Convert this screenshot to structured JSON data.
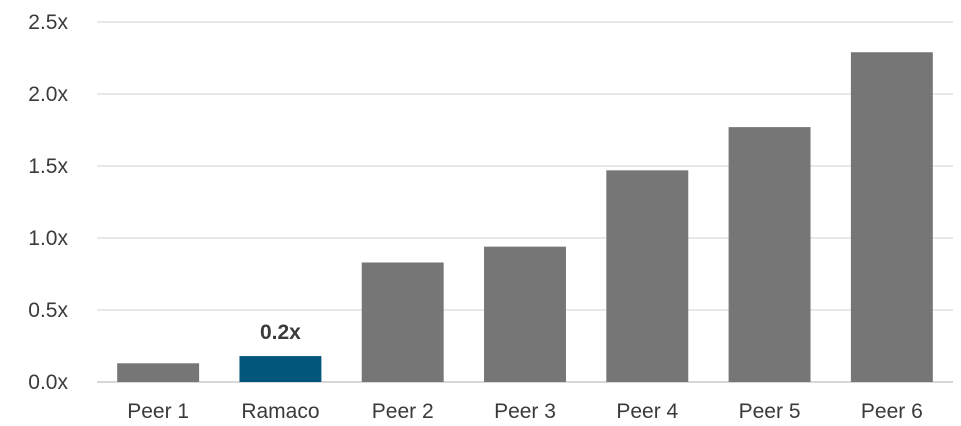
{
  "chart_data": {
    "type": "bar",
    "title": "",
    "xlabel": "",
    "ylabel": "",
    "categories": [
      "Peer 1",
      "Ramaco",
      "Peer 2",
      "Peer 3",
      "Peer 4",
      "Peer 5",
      "Peer 6"
    ],
    "values": [
      0.13,
      0.18,
      0.83,
      0.94,
      1.47,
      1.77,
      2.29
    ],
    "ylim": [
      0,
      2.5
    ],
    "yticks": [
      0.0,
      0.5,
      1.0,
      1.5,
      2.0,
      2.5
    ],
    "ytick_labels": [
      "0.0x",
      "0.5x",
      "1.0x",
      "1.5x",
      "2.0x",
      "2.5x"
    ],
    "data_labels": [
      {
        "category": "Ramaco",
        "text": "0.2x"
      }
    ],
    "highlight_category": "Ramaco",
    "grid": true,
    "legend": "none",
    "colors": {
      "bar": "#767676",
      "highlight": "#00577b",
      "gridline": "#d9d9d9",
      "text": "#3a3a3a"
    }
  }
}
